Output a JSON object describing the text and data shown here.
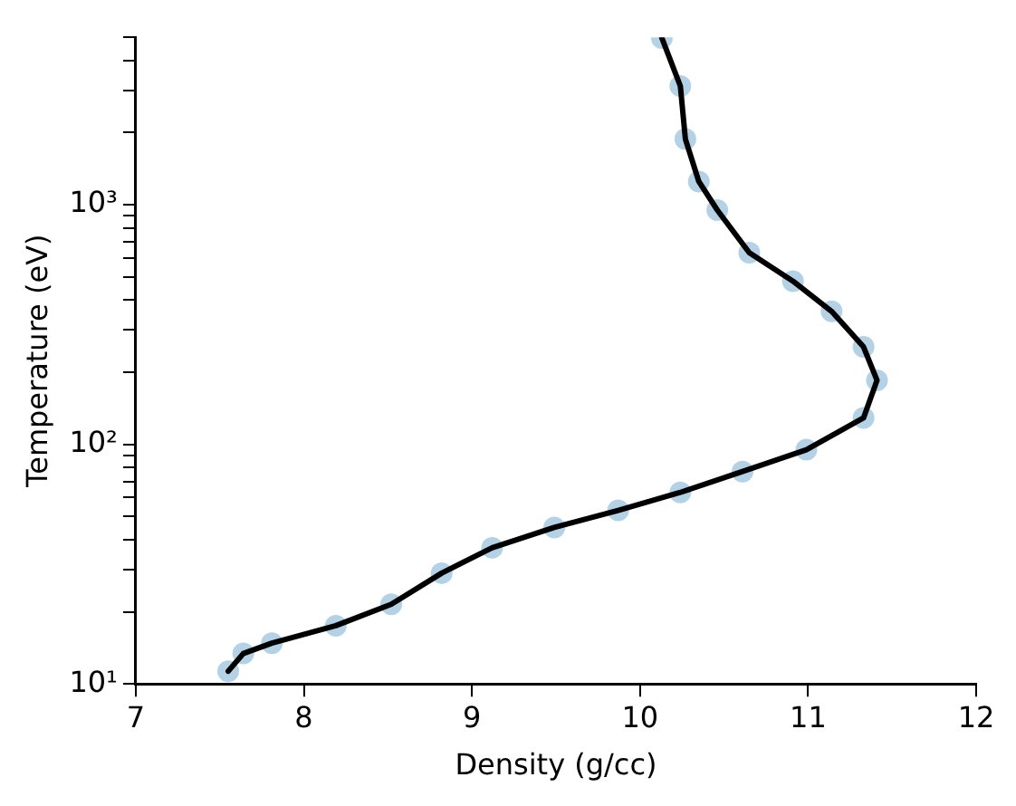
{
  "chart_data": {
    "type": "line",
    "xlabel": "Density (g/cc)",
    "ylabel": "Temperature (eV)",
    "log": "y",
    "grid": false,
    "legend": false,
    "xlim": [
      7,
      12
    ],
    "xticks": [
      7,
      8,
      9,
      10,
      11,
      12
    ],
    "ylim": [
      10,
      5000
    ],
    "yticks": [
      {
        "value": 10,
        "label": "10¹"
      },
      {
        "value": 20,
        "label": null
      },
      {
        "value": 30,
        "label": null
      },
      {
        "value": 40,
        "label": null
      },
      {
        "value": 50,
        "label": null
      },
      {
        "value": 60,
        "label": null
      },
      {
        "value": 70,
        "label": null
      },
      {
        "value": 80,
        "label": null
      },
      {
        "value": 90,
        "label": null
      },
      {
        "value": 100,
        "label": "10²"
      },
      {
        "value": 200,
        "label": null
      },
      {
        "value": 300,
        "label": null
      },
      {
        "value": 400,
        "label": null
      },
      {
        "value": 500,
        "label": null
      },
      {
        "value": 600,
        "label": null
      },
      {
        "value": 700,
        "label": null
      },
      {
        "value": 800,
        "label": null
      },
      {
        "value": 900,
        "label": null
      },
      {
        "value": 1000,
        "label": "10³"
      },
      {
        "value": 2000,
        "label": null
      },
      {
        "value": 3000,
        "label": null
      },
      {
        "value": 4000,
        "label": null
      },
      {
        "value": 5000,
        "label": null
      }
    ],
    "series": [
      {
        "type": "scatter",
        "color": "#1f77b4",
        "x": [
          10.13,
          10.24,
          10.27,
          10.35,
          10.46,
          10.65,
          10.91,
          11.14,
          11.33,
          11.41,
          11.33,
          10.99,
          10.61,
          10.24,
          9.87,
          9.49,
          9.12,
          8.82,
          8.52,
          8.19,
          7.81,
          7.64,
          7.55
        ],
        "values": [
          4970,
          3130,
          1880,
          1250,
          950,
          631,
          480,
          359,
          255,
          185,
          129,
          95,
          77,
          63,
          53,
          45,
          37,
          29,
          21.5,
          17.5,
          14.8,
          13.4,
          11.3
        ]
      },
      {
        "color": "#000000",
        "x": [
          10.13,
          10.24,
          10.27,
          10.35,
          10.46,
          10.65,
          10.91,
          11.14,
          11.33,
          11.41,
          11.33,
          10.99,
          10.61,
          10.24,
          9.87,
          9.49,
          9.12,
          8.82,
          8.52,
          8.19,
          7.81,
          7.64,
          7.55
        ],
        "values": [
          4970,
          3130,
          1880,
          1250,
          950,
          631,
          480,
          359,
          255,
          185,
          129,
          95,
          77,
          63,
          53,
          45,
          37,
          29,
          21.5,
          17.5,
          14.8,
          13.4,
          11.3
        ]
      }
    ]
  }
}
